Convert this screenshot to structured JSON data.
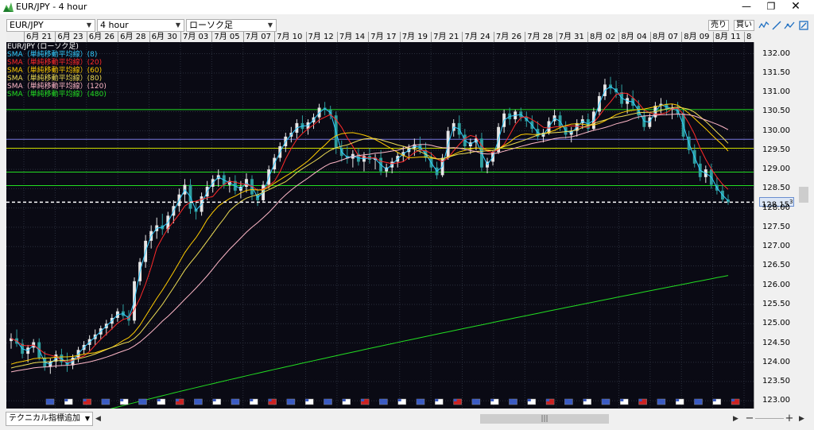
{
  "window": {
    "title": "EUR/JPY - 4 hour"
  },
  "toolbar": {
    "symbol": "EUR/JPY",
    "timeframe": "4 hour",
    "chart_type": "ローソク足",
    "sell_label": "売り",
    "buy_label": "買い"
  },
  "time_axis": [
    "6月 21",
    "6月 23",
    "6月 26",
    "6月 28",
    "6月 30",
    "7月 03",
    "7月 05",
    "7月 07",
    "7月 10",
    "7月 12",
    "7月 14",
    "7月 17",
    "7月 19",
    "7月 21",
    "7月 24",
    "7月 26",
    "7月 28",
    "7月 31",
    "8月 02",
    "8月 04",
    "8月 07",
    "8月 09",
    "8月 11",
    "8"
  ],
  "legend": [
    {
      "text": "EUR/JPY (ローソク足)",
      "color": "#ffffff"
    },
    {
      "text": "SMA（単純移動平均線）(8)",
      "color": "#33ccff"
    },
    {
      "text": "SMA（単純移動平均線）(20)",
      "color": "#ff2a2a"
    },
    {
      "text": "SMA（単純移動平均線）(60)",
      "color": "#ffcc00"
    },
    {
      "text": "SMA（単純移動平均線）(80)",
      "color": "#eedd55"
    },
    {
      "text": "SMA（単純移動平均線）(120)",
      "color": "#ffb8c8"
    },
    {
      "text": "SMA（単純移動平均線）(480)",
      "color": "#22dd22"
    }
  ],
  "price_axis": [
    "132.00",
    "131.50",
    "131.00",
    "130.50",
    "130.00",
    "129.50",
    "129.00",
    "128.50",
    "128.00",
    "127.50",
    "127.00",
    "126.50",
    "126.00",
    "125.50",
    "125.00",
    "124.50",
    "124.00",
    "123.50",
    "123.00"
  ],
  "current_price": {
    "main": "128.15",
    "sup": "3"
  },
  "horizontal_levels": [
    130.55,
    129.78,
    129.55,
    128.93,
    128.58
  ],
  "horizontal_level_colors": [
    "#22dd22",
    "#7777dd",
    "#ccdd00",
    "#22dd22",
    "#22dd22"
  ],
  "bottom": {
    "indicator_label": "テクニカル指標追加"
  },
  "chart_data": {
    "type": "candlestick",
    "symbol": "EUR/JPY",
    "timeframe": "4 hour",
    "ylim": [
      122.8,
      132.3
    ],
    "bull_color": "#e6e6e6",
    "bear_color": "#2e9e9e",
    "ohlc": [
      [
        124.55,
        124.75,
        124.35,
        124.62
      ],
      [
        124.62,
        124.85,
        124.4,
        124.48
      ],
      [
        124.48,
        124.6,
        124.1,
        124.22
      ],
      [
        124.22,
        124.45,
        124.0,
        124.38
      ],
      [
        124.38,
        124.6,
        124.25,
        124.52
      ],
      [
        124.52,
        124.62,
        124.05,
        124.12
      ],
      [
        124.12,
        124.28,
        123.78,
        123.88
      ],
      [
        123.88,
        124.1,
        123.7,
        124.02
      ],
      [
        124.02,
        124.3,
        123.85,
        124.2
      ],
      [
        124.2,
        124.35,
        123.9,
        124.0
      ],
      [
        124.0,
        124.25,
        123.75,
        123.92
      ],
      [
        123.92,
        124.2,
        123.82,
        124.12
      ],
      [
        124.12,
        124.4,
        124.0,
        124.32
      ],
      [
        124.32,
        124.55,
        124.2,
        124.45
      ],
      [
        124.45,
        124.7,
        124.3,
        124.6
      ],
      [
        124.6,
        124.85,
        124.45,
        124.72
      ],
      [
        124.72,
        124.95,
        124.6,
        124.88
      ],
      [
        124.88,
        125.1,
        124.7,
        125.0
      ],
      [
        125.0,
        125.25,
        124.85,
        125.15
      ],
      [
        125.15,
        125.4,
        125.05,
        125.32
      ],
      [
        125.32,
        125.5,
        125.1,
        125.2
      ],
      [
        125.2,
        125.35,
        124.95,
        125.08
      ],
      [
        125.08,
        126.2,
        125.0,
        126.1
      ],
      [
        126.1,
        126.7,
        126.0,
        126.6
      ],
      [
        126.6,
        127.3,
        126.45,
        127.15
      ],
      [
        127.15,
        127.55,
        126.95,
        127.4
      ],
      [
        127.4,
        127.75,
        127.2,
        127.55
      ],
      [
        127.55,
        127.85,
        127.3,
        127.45
      ],
      [
        127.45,
        127.9,
        127.35,
        127.8
      ],
      [
        127.8,
        128.2,
        127.6,
        128.05
      ],
      [
        128.05,
        128.5,
        127.9,
        128.35
      ],
      [
        128.35,
        128.75,
        128.15,
        128.6
      ],
      [
        128.6,
        128.75,
        127.85,
        127.98
      ],
      [
        127.98,
        128.15,
        127.7,
        127.9
      ],
      [
        127.9,
        128.4,
        127.8,
        128.3
      ],
      [
        128.3,
        128.7,
        128.2,
        128.55
      ],
      [
        128.55,
        128.85,
        128.4,
        128.75
      ],
      [
        128.75,
        129.0,
        128.55,
        128.85
      ],
      [
        128.85,
        128.95,
        128.5,
        128.6
      ],
      [
        128.6,
        128.8,
        128.4,
        128.7
      ],
      [
        128.7,
        128.85,
        128.35,
        128.45
      ],
      [
        128.45,
        128.7,
        128.25,
        128.55
      ],
      [
        128.55,
        128.9,
        128.4,
        128.75
      ],
      [
        128.75,
        128.85,
        128.2,
        128.35
      ],
      [
        128.35,
        128.5,
        128.05,
        128.2
      ],
      [
        128.2,
        128.7,
        128.15,
        128.6
      ],
      [
        128.6,
        129.1,
        128.5,
        129.0
      ],
      [
        129.0,
        129.4,
        128.9,
        129.3
      ],
      [
        129.3,
        129.7,
        129.2,
        129.6
      ],
      [
        129.6,
        129.95,
        129.45,
        129.85
      ],
      [
        129.85,
        130.1,
        129.7,
        129.95
      ],
      [
        129.95,
        130.3,
        129.8,
        130.2
      ],
      [
        130.2,
        130.4,
        129.95,
        130.05
      ],
      [
        130.05,
        130.3,
        129.9,
        130.22
      ],
      [
        130.22,
        130.45,
        130.05,
        130.35
      ],
      [
        130.35,
        130.7,
        130.2,
        130.6
      ],
      [
        130.6,
        130.75,
        130.4,
        130.55
      ],
      [
        130.55,
        130.65,
        130.3,
        130.4
      ],
      [
        130.4,
        130.5,
        129.4,
        129.55
      ],
      [
        129.55,
        129.75,
        129.2,
        129.35
      ],
      [
        129.35,
        129.6,
        129.15,
        129.28
      ],
      [
        129.28,
        129.5,
        129.05,
        129.4
      ],
      [
        129.4,
        129.55,
        129.1,
        129.2
      ],
      [
        129.2,
        129.45,
        128.95,
        129.35
      ],
      [
        129.35,
        129.55,
        129.15,
        129.25
      ],
      [
        129.25,
        129.4,
        129.0,
        129.3
      ],
      [
        129.3,
        129.5,
        128.85,
        128.95
      ],
      [
        128.95,
        129.15,
        128.8,
        129.05
      ],
      [
        129.05,
        129.3,
        128.9,
        129.2
      ],
      [
        129.2,
        129.45,
        129.05,
        129.35
      ],
      [
        129.35,
        129.6,
        129.2,
        129.45
      ],
      [
        129.45,
        129.65,
        129.25,
        129.55
      ],
      [
        129.55,
        129.8,
        129.35,
        129.65
      ],
      [
        129.65,
        129.85,
        129.4,
        129.5
      ],
      [
        129.5,
        129.7,
        129.2,
        129.3
      ],
      [
        129.3,
        129.45,
        128.95,
        129.05
      ],
      [
        129.05,
        129.2,
        128.75,
        128.85
      ],
      [
        128.85,
        129.4,
        128.8,
        129.3
      ],
      [
        129.3,
        130.1,
        129.25,
        130.0
      ],
      [
        130.0,
        130.3,
        129.85,
        130.2
      ],
      [
        130.2,
        130.4,
        129.8,
        129.9
      ],
      [
        129.9,
        130.05,
        129.5,
        129.6
      ],
      [
        129.6,
        129.8,
        129.4,
        129.7
      ],
      [
        129.7,
        129.9,
        129.5,
        129.8
      ],
      [
        129.8,
        129.95,
        128.95,
        129.05
      ],
      [
        129.05,
        129.3,
        128.9,
        129.2
      ],
      [
        129.2,
        129.5,
        129.1,
        129.45
      ],
      [
        129.45,
        130.2,
        129.4,
        130.1
      ],
      [
        130.1,
        130.55,
        129.95,
        130.45
      ],
      [
        130.45,
        130.6,
        130.15,
        130.3
      ],
      [
        130.3,
        130.55,
        130.2,
        130.5
      ],
      [
        130.5,
        130.6,
        130.25,
        130.35
      ],
      [
        130.35,
        130.5,
        130.1,
        130.25
      ],
      [
        130.25,
        130.4,
        129.95,
        130.05
      ],
      [
        130.05,
        130.25,
        129.75,
        129.85
      ],
      [
        129.85,
        130.05,
        129.7,
        129.95
      ],
      [
        129.95,
        130.35,
        129.9,
        130.25
      ],
      [
        130.25,
        130.55,
        130.15,
        130.4
      ],
      [
        130.4,
        130.5,
        130.0,
        130.1
      ],
      [
        130.1,
        130.25,
        129.8,
        129.9
      ],
      [
        129.9,
        130.1,
        129.7,
        130.0
      ],
      [
        130.0,
        130.3,
        129.85,
        130.2
      ],
      [
        130.2,
        130.4,
        130.05,
        130.3
      ],
      [
        130.3,
        130.45,
        129.95,
        130.05
      ],
      [
        130.05,
        130.6,
        130.0,
        130.5
      ],
      [
        130.5,
        131.0,
        130.4,
        130.9
      ],
      [
        130.9,
        131.35,
        130.8,
        131.2
      ],
      [
        131.2,
        131.4,
        130.95,
        131.1
      ],
      [
        131.1,
        131.3,
        130.85,
        131.0
      ],
      [
        131.0,
        131.2,
        130.6,
        130.7
      ],
      [
        130.7,
        130.95,
        130.45,
        130.85
      ],
      [
        130.85,
        131.05,
        130.55,
        130.65
      ],
      [
        130.65,
        130.8,
        130.3,
        130.4
      ],
      [
        130.4,
        130.55,
        130.0,
        130.1
      ],
      [
        130.1,
        130.45,
        130.05,
        130.35
      ],
      [
        130.35,
        130.75,
        130.25,
        130.65
      ],
      [
        130.65,
        130.85,
        130.45,
        130.7
      ],
      [
        130.7,
        130.8,
        130.4,
        130.55
      ],
      [
        130.55,
        130.7,
        130.3,
        130.6
      ],
      [
        130.6,
        130.75,
        130.35,
        130.45
      ],
      [
        130.45,
        130.55,
        129.75,
        129.85
      ],
      [
        129.85,
        130.0,
        129.4,
        129.5
      ],
      [
        129.5,
        129.65,
        129.05,
        129.15
      ],
      [
        129.15,
        129.35,
        128.7,
        128.8
      ],
      [
        128.8,
        129.1,
        128.65,
        129.0
      ],
      [
        129.0,
        129.15,
        128.5,
        128.6
      ],
      [
        128.6,
        128.8,
        128.35,
        128.45
      ],
      [
        128.45,
        128.6,
        128.15,
        128.22
      ],
      [
        128.22,
        128.35,
        128.08,
        128.15
      ]
    ]
  }
}
